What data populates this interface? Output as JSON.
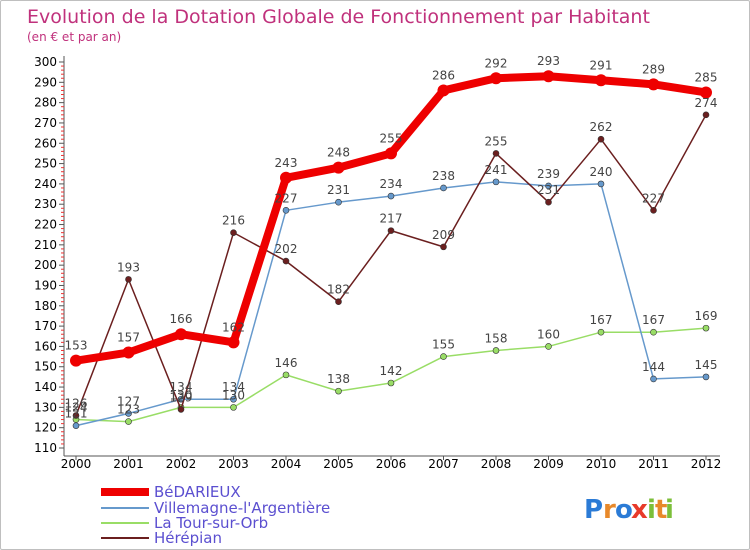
{
  "chart_data": {
    "type": "line",
    "title": "Evolution de la Dotation Globale de Fonctionnement par Habitant",
    "subtitle": "(en € et par an)",
    "xlabel": "",
    "ylabel": "",
    "x": [
      "2000",
      "2001",
      "2002",
      "2003",
      "2004",
      "2005",
      "2006",
      "2007",
      "2008",
      "2009",
      "2010",
      "2011",
      "2012"
    ],
    "y_ticks": [
      "110",
      "120",
      "130",
      "140",
      "150",
      "160",
      "170",
      "180",
      "190",
      "200",
      "210",
      "220",
      "230",
      "240",
      "250",
      "260",
      "270",
      "280",
      "290",
      "300"
    ],
    "ylim": [
      110,
      300
    ],
    "grid": false,
    "legend_position": "bottom-left",
    "series": [
      {
        "name": "BéDARIEUX",
        "color": "#ee0000",
        "values": [
          153,
          157,
          166,
          162,
          243,
          248,
          255,
          286,
          292,
          293,
          291,
          289,
          285
        ],
        "labels": [
          "153",
          "157",
          "166",
          "162",
          "243",
          "248",
          "255",
          "286",
          "292",
          "293",
          "291",
          "289",
          "285"
        ]
      },
      {
        "name": "Villemagne-l'Argentière",
        "color": "#6699cc",
        "values": [
          121,
          127,
          134,
          134,
          227,
          231,
          234,
          238,
          241,
          239,
          240,
          144,
          145
        ],
        "labels": [
          "121",
          "127",
          "134",
          "134",
          "227",
          "231",
          "234",
          "238",
          "241",
          "239",
          "240",
          "144",
          "145"
        ]
      },
      {
        "name": "La Tour-sur-Orb",
        "color": "#99dd66",
        "values": [
          124,
          123,
          130,
          130,
          146,
          138,
          142,
          155,
          158,
          160,
          167,
          167,
          169
        ],
        "labels": [
          "124",
          "123",
          "130",
          "130",
          "146",
          "138",
          "142",
          "155",
          "158",
          "160",
          "167",
          "167",
          "169"
        ]
      },
      {
        "name": "Hérépian",
        "color": "#6b1f1f",
        "values": [
          126,
          193,
          129,
          216,
          202,
          182,
          217,
          209,
          255,
          231,
          262,
          227,
          274
        ],
        "labels": [
          "126",
          "193",
          "129",
          "216",
          "202",
          "182",
          "217",
          "209",
          "255",
          "231",
          "262",
          "227",
          "274"
        ]
      }
    ]
  },
  "logo": {
    "text": "Proxiti"
  }
}
